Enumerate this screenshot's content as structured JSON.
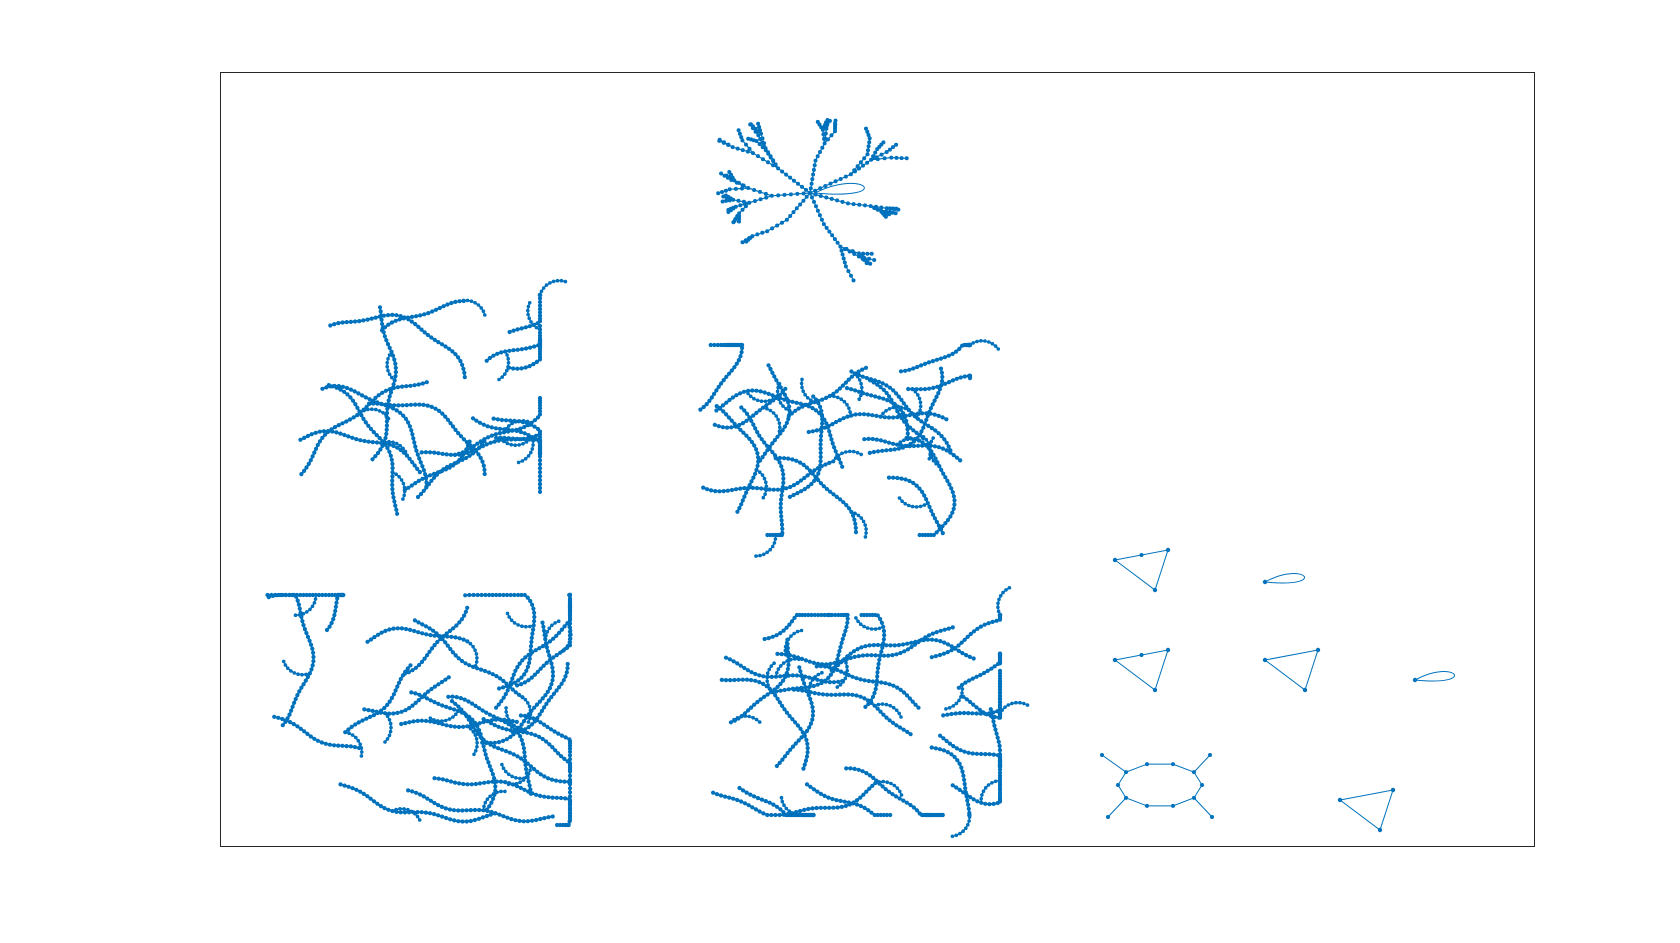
{
  "figure": {
    "title": "",
    "background": "#ffffff",
    "axes_border_color": "#262626",
    "edge_color": "#0072bd",
    "node_color": "#0072bd",
    "axes_visible": false
  },
  "graph_plot": {
    "layout": "force",
    "components": [
      {
        "name": "large-component",
        "kind": "tree",
        "self_loop": true,
        "depth": 4,
        "branching": 3,
        "arm_count": 7,
        "node_spacing": 1.0,
        "seed": 11
      },
      {
        "name": "large-component",
        "kind": "sprawl",
        "self_loop": false,
        "arm_count": 3,
        "strand_count": 18,
        "nodes_per_strand": 42,
        "seed": 23
      },
      {
        "name": "large-component",
        "kind": "sprawl",
        "self_loop": false,
        "arm_count": 3,
        "strand_count": 20,
        "nodes_per_strand": 44,
        "seed": 37
      },
      {
        "name": "large-component",
        "kind": "sprawl",
        "self_loop": false,
        "arm_count": 3,
        "strand_count": 22,
        "nodes_per_strand": 46,
        "seed": 51
      },
      {
        "name": "large-component",
        "kind": "sprawl",
        "self_loop": false,
        "arm_count": 3,
        "strand_count": 22,
        "nodes_per_strand": 46,
        "seed": 67
      },
      {
        "name": "small-component",
        "kind": "triangle",
        "nodes": 4
      },
      {
        "name": "small-component",
        "kind": "self-loop",
        "nodes": 1
      },
      {
        "name": "small-component",
        "kind": "triangle",
        "nodes": 4
      },
      {
        "name": "small-component",
        "kind": "triangle",
        "nodes": 3
      },
      {
        "name": "small-component",
        "kind": "self-loop",
        "nodes": 1
      },
      {
        "name": "small-component",
        "kind": "cycle-with-pendants",
        "nodes": 14
      },
      {
        "name": "small-component",
        "kind": "triangle",
        "nodes": 3
      }
    ]
  }
}
